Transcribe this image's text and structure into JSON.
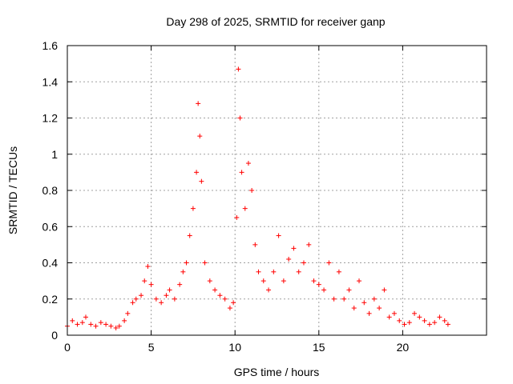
{
  "chart_data": {
    "type": "scatter",
    "title": "Day 298 of 2025, SRMTID for receiver ganp",
    "xlabel": "GPS time / hours",
    "ylabel": "SRMTID / TECUs",
    "xlim": [
      0,
      25
    ],
    "ylim": [
      0,
      1.6
    ],
    "xticks": [
      0,
      5,
      10,
      15,
      20
    ],
    "yticks": [
      0,
      0.2,
      0.4,
      0.6,
      0.8,
      1,
      1.2,
      1.4,
      1.6
    ],
    "xtick_labels": [
      "0",
      "5",
      "10",
      "15",
      "20"
    ],
    "ytick_labels": [
      "0",
      "0.2",
      "0.4",
      "0.6",
      "0.8",
      "1",
      "1.2",
      "1.4",
      "1.6"
    ],
    "grid": true,
    "marker": "+",
    "colors": {
      "series": "#ff0000",
      "grid": "#a0a0a0",
      "axis": "#000000"
    },
    "series": [
      {
        "name": "SRMTID",
        "x": [
          0.0,
          0.3,
          0.6,
          0.9,
          1.1,
          1.4,
          1.7,
          2.0,
          2.3,
          2.6,
          2.9,
          3.1,
          3.4,
          3.6,
          3.9,
          4.1,
          4.4,
          4.6,
          4.8,
          5.0,
          5.3,
          5.6,
          5.9,
          6.1,
          6.4,
          6.7,
          6.9,
          7.1,
          7.3,
          7.5,
          7.7,
          7.8,
          7.9,
          8.0,
          8.2,
          8.5,
          8.8,
          9.1,
          9.4,
          9.7,
          9.9,
          10.1,
          10.2,
          10.3,
          10.4,
          10.6,
          10.8,
          11.0,
          11.2,
          11.4,
          11.7,
          12.0,
          12.3,
          12.6,
          12.9,
          13.2,
          13.5,
          13.8,
          14.1,
          14.4,
          14.7,
          15.0,
          15.3,
          15.6,
          15.9,
          16.2,
          16.5,
          16.8,
          17.1,
          17.4,
          17.7,
          18.0,
          18.3,
          18.6,
          18.9,
          19.2,
          19.5,
          19.8,
          20.1,
          20.4,
          20.7,
          21.0,
          21.3,
          21.6,
          21.9,
          22.2,
          22.5,
          22.7
        ],
        "y": [
          0.05,
          0.08,
          0.06,
          0.07,
          0.1,
          0.06,
          0.05,
          0.07,
          0.06,
          0.05,
          0.04,
          0.05,
          0.08,
          0.12,
          0.18,
          0.2,
          0.22,
          0.3,
          0.38,
          0.28,
          0.2,
          0.18,
          0.22,
          0.25,
          0.2,
          0.28,
          0.35,
          0.4,
          0.55,
          0.7,
          0.9,
          1.28,
          1.1,
          0.85,
          0.4,
          0.3,
          0.25,
          0.22,
          0.2,
          0.15,
          0.18,
          0.65,
          1.47,
          1.2,
          0.9,
          0.7,
          0.95,
          0.8,
          0.5,
          0.35,
          0.3,
          0.25,
          0.35,
          0.55,
          0.3,
          0.42,
          0.48,
          0.35,
          0.4,
          0.5,
          0.3,
          0.28,
          0.25,
          0.4,
          0.2,
          0.35,
          0.2,
          0.25,
          0.15,
          0.3,
          0.18,
          0.12,
          0.2,
          0.15,
          0.25,
          0.1,
          0.12,
          0.08,
          0.06,
          0.07,
          0.12,
          0.1,
          0.08,
          0.06,
          0.07,
          0.1,
          0.08,
          0.06
        ]
      }
    ]
  }
}
